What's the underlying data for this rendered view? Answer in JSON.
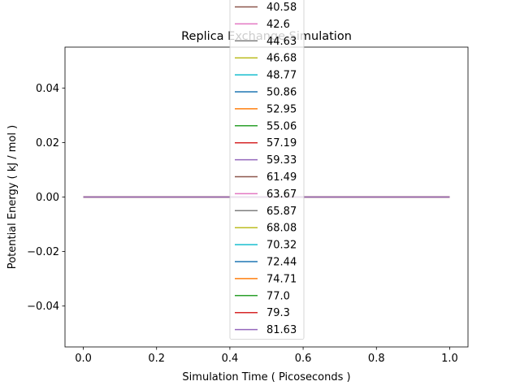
{
  "chart_data": {
    "type": "line",
    "title": "Replica Exchange Simulation",
    "xlabel": "Simulation Time ( Picoseconds )",
    "ylabel": "Potential Energy ( kJ / mol )",
    "xlim": [
      -0.05,
      1.05
    ],
    "ylim": [
      -0.055,
      0.055
    ],
    "xticks": [
      0.0,
      0.2,
      0.4,
      0.6,
      0.8,
      1.0
    ],
    "xtick_labels": [
      "0.0",
      "0.2",
      "0.4",
      "0.6",
      "0.8",
      "1.0"
    ],
    "yticks": [
      -0.04,
      -0.02,
      0.0,
      0.02,
      0.04
    ],
    "ytick_labels": [
      "−0.04",
      "−0.02",
      "0.00",
      "0.02",
      "0.04"
    ],
    "grid": false,
    "legend_position": "top-center",
    "x": [
      0.0,
      1.0
    ],
    "series": [
      {
        "name": "40.58",
        "color": "#8c564b",
        "values": [
          0,
          0
        ]
      },
      {
        "name": "42.6",
        "color": "#e377c2",
        "values": [
          0,
          0
        ]
      },
      {
        "name": "44.63",
        "color": "#7f7f7f",
        "values": [
          0,
          0
        ]
      },
      {
        "name": "46.68",
        "color": "#bcbd22",
        "values": [
          0,
          0
        ]
      },
      {
        "name": "48.77",
        "color": "#17becf",
        "values": [
          0,
          0
        ]
      },
      {
        "name": "50.86",
        "color": "#1f77b4",
        "values": [
          0,
          0
        ]
      },
      {
        "name": "52.95",
        "color": "#ff7f0e",
        "values": [
          0,
          0
        ]
      },
      {
        "name": "55.06",
        "color": "#2ca02c",
        "values": [
          0,
          0
        ]
      },
      {
        "name": "57.19",
        "color": "#d62728",
        "values": [
          0,
          0
        ]
      },
      {
        "name": "59.33",
        "color": "#9467bd",
        "values": [
          0,
          0
        ]
      },
      {
        "name": "61.49",
        "color": "#8c564b",
        "values": [
          0,
          0
        ]
      },
      {
        "name": "63.67",
        "color": "#e377c2",
        "values": [
          0,
          0
        ]
      },
      {
        "name": "65.87",
        "color": "#7f7f7f",
        "values": [
          0,
          0
        ]
      },
      {
        "name": "68.08",
        "color": "#bcbd22",
        "values": [
          0,
          0
        ]
      },
      {
        "name": "70.32",
        "color": "#17becf",
        "values": [
          0,
          0
        ]
      },
      {
        "name": "72.44",
        "color": "#1f77b4",
        "values": [
          0,
          0
        ]
      },
      {
        "name": "74.71",
        "color": "#ff7f0e",
        "values": [
          0,
          0
        ]
      },
      {
        "name": "77.0",
        "color": "#2ca02c",
        "values": [
          0,
          0
        ]
      },
      {
        "name": "79.3",
        "color": "#d62728",
        "values": [
          0,
          0
        ]
      },
      {
        "name": "81.63",
        "color": "#9467bd",
        "values": [
          0,
          0
        ]
      }
    ]
  }
}
